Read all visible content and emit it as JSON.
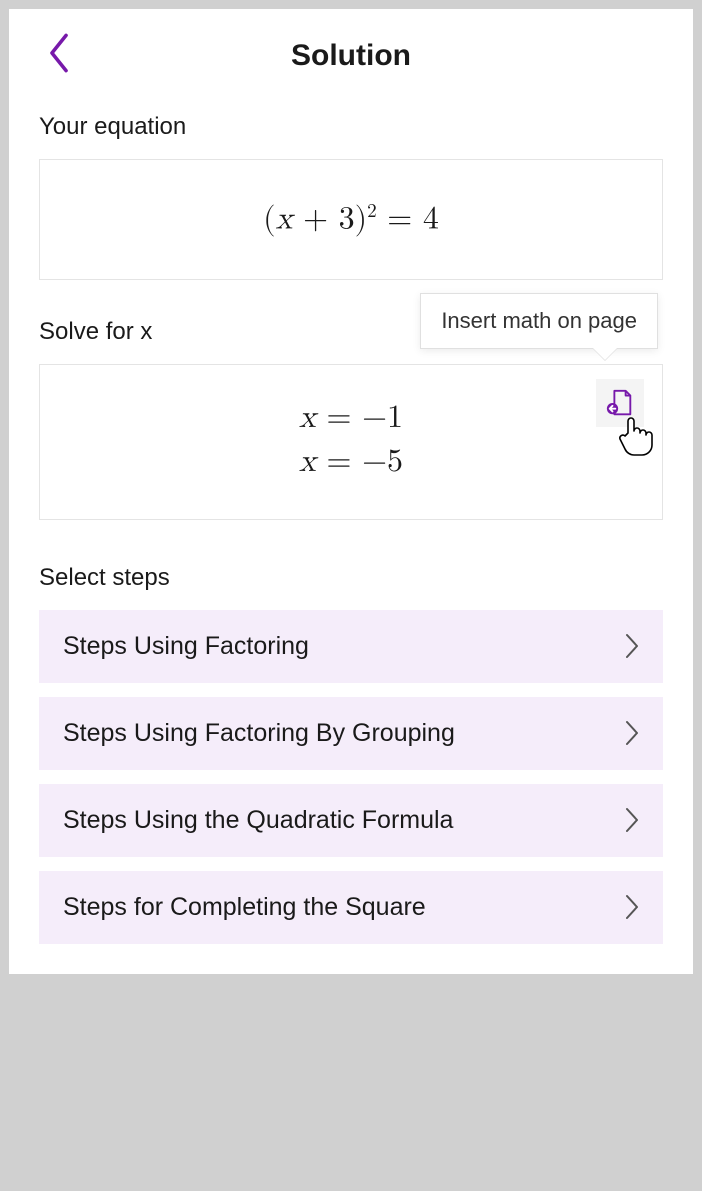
{
  "header": {
    "title": "Solution"
  },
  "your_equation": {
    "label": "Your equation",
    "expression_html": "(<span class='var'>x</span> + 3)<sup>2</sup> = 4"
  },
  "solve": {
    "label": "Solve for x",
    "solutions": [
      "<span class='var'>x</span> = −1",
      "<span class='var'>x</span> = −5"
    ],
    "tooltip": "Insert math on page"
  },
  "select_steps": {
    "label": "Select steps",
    "items": [
      "Steps Using Factoring",
      "Steps Using Factoring By Grouping",
      "Steps Using the Quadratic Formula",
      "Steps for Completing the Square"
    ]
  },
  "colors": {
    "accent_purple": "#7719aa",
    "step_bg": "#f5edfa",
    "border": "#e4e4e4",
    "text": "#1a1a1a"
  }
}
